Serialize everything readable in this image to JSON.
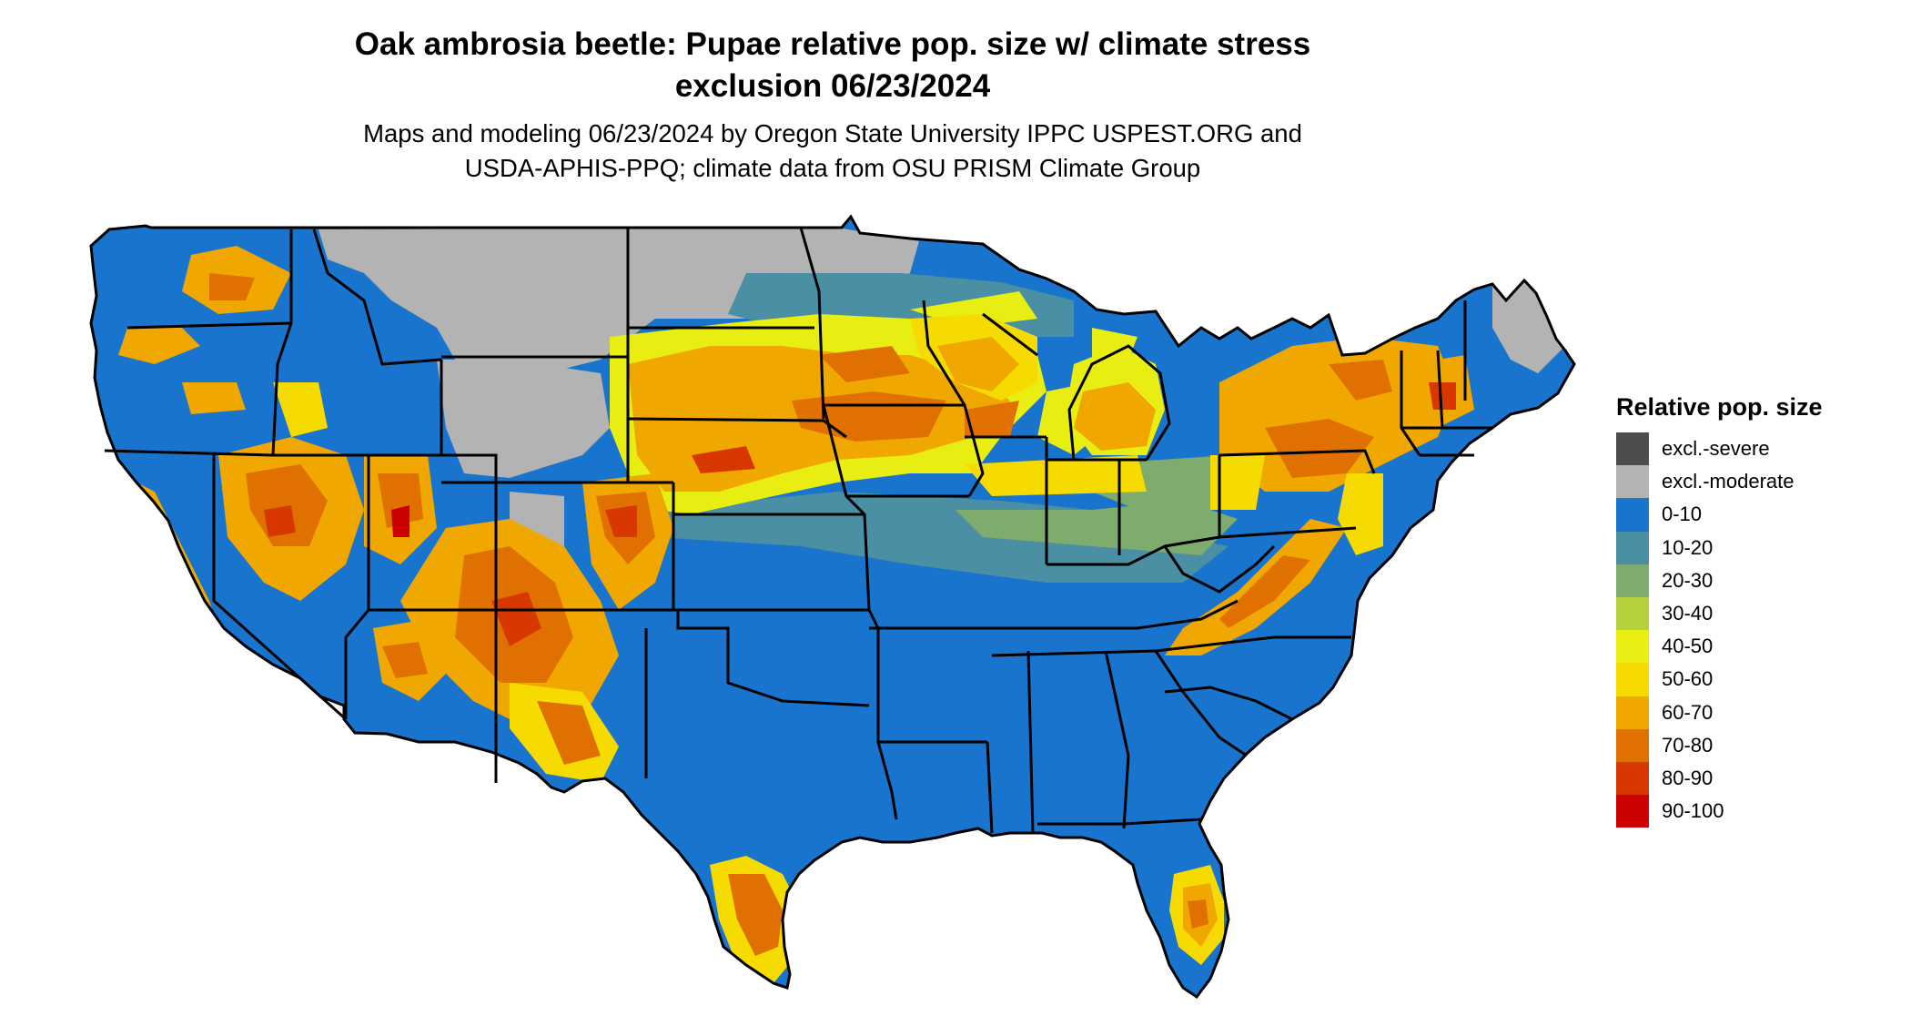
{
  "title": {
    "line1": "Oak ambrosia beetle: Pupae relative pop. size w/ climate stress",
    "line2": "exclusion 06/23/2024"
  },
  "subtitle": {
    "line1": "Maps and modeling 06/23/2024 by Oregon State University IPPC USPEST.ORG and",
    "line2": "USDA-APHIS-PPQ; climate data from OSU PRISM Climate Group"
  },
  "legend": {
    "title": "Relative pop. size",
    "items": [
      {
        "label": "excl.-severe",
        "color": "#4d4d4d"
      },
      {
        "label": "excl.-moderate",
        "color": "#b3b3b3"
      },
      {
        "label": "0-10",
        "color": "#1874cd"
      },
      {
        "label": "10-20",
        "color": "#4a8fa3"
      },
      {
        "label": "20-30",
        "color": "#7dac6e"
      },
      {
        "label": "30-40",
        "color": "#b3d13b"
      },
      {
        "label": "40-50",
        "color": "#e8ee12"
      },
      {
        "label": "50-60",
        "color": "#f6db00"
      },
      {
        "label": "60-70",
        "color": "#f0a800"
      },
      {
        "label": "70-80",
        "color": "#e07000"
      },
      {
        "label": "80-90",
        "color": "#d83800"
      },
      {
        "label": "90-100",
        "color": "#cc0000"
      }
    ]
  }
}
